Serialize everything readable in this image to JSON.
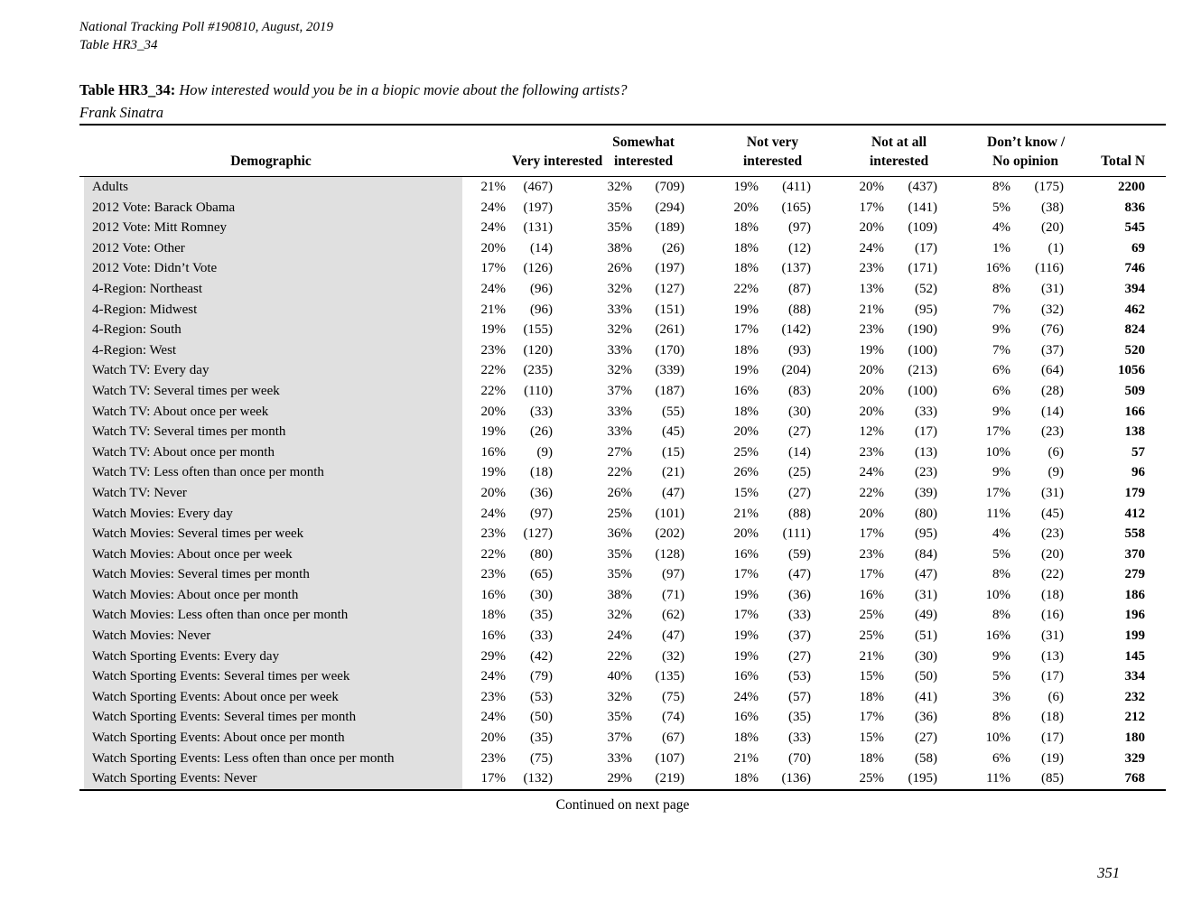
{
  "doc_header": {
    "line1": "National Tracking Poll #190810, August, 2019",
    "line2": "Table HR3_34"
  },
  "title": {
    "label": "Table HR3_34:",
    "question": "How interested would you be in a biopic movie about the following artists?",
    "subject": "Frank Sinatra"
  },
  "footer": {
    "continued": "Continued on next page",
    "page_number": "351"
  },
  "colors": {
    "demographic_shade": "#e0e0e0",
    "rule": "#000000",
    "text": "#000000",
    "background": "#ffffff"
  },
  "table": {
    "demographic_header": "Demographic",
    "total_header": "Total N",
    "group_headers": [
      [
        "",
        "Very interested"
      ],
      [
        "Somewhat",
        "interested"
      ],
      [
        "Not very",
        "interested"
      ],
      [
        "Not at all",
        "interested"
      ],
      [
        "Don’t know /",
        "No opinion"
      ]
    ],
    "rows": [
      {
        "label": "Adults",
        "values": [
          "21%",
          "(467)",
          "32%",
          "(709)",
          "19%",
          "(411)",
          "20%",
          "(437)",
          "8%",
          "(175)"
        ],
        "total": "2200"
      },
      {
        "label": "2012 Vote: Barack Obama",
        "values": [
          "24%",
          "(197)",
          "35%",
          "(294)",
          "20%",
          "(165)",
          "17%",
          "(141)",
          "5%",
          "(38)"
        ],
        "total": "836"
      },
      {
        "label": "2012 Vote: Mitt Romney",
        "values": [
          "24%",
          "(131)",
          "35%",
          "(189)",
          "18%",
          "(97)",
          "20%",
          "(109)",
          "4%",
          "(20)"
        ],
        "total": "545"
      },
      {
        "label": "2012 Vote: Other",
        "values": [
          "20%",
          "(14)",
          "38%",
          "(26)",
          "18%",
          "(12)",
          "24%",
          "(17)",
          "1%",
          "(1)"
        ],
        "total": "69"
      },
      {
        "label": "2012 Vote: Didn’t Vote",
        "values": [
          "17%",
          "(126)",
          "26%",
          "(197)",
          "18%",
          "(137)",
          "23%",
          "(171)",
          "16%",
          "(116)"
        ],
        "total": "746"
      },
      {
        "label": "4-Region: Northeast",
        "values": [
          "24%",
          "(96)",
          "32%",
          "(127)",
          "22%",
          "(87)",
          "13%",
          "(52)",
          "8%",
          "(31)"
        ],
        "total": "394"
      },
      {
        "label": "4-Region: Midwest",
        "values": [
          "21%",
          "(96)",
          "33%",
          "(151)",
          "19%",
          "(88)",
          "21%",
          "(95)",
          "7%",
          "(32)"
        ],
        "total": "462"
      },
      {
        "label": "4-Region: South",
        "values": [
          "19%",
          "(155)",
          "32%",
          "(261)",
          "17%",
          "(142)",
          "23%",
          "(190)",
          "9%",
          "(76)"
        ],
        "total": "824"
      },
      {
        "label": "4-Region: West",
        "values": [
          "23%",
          "(120)",
          "33%",
          "(170)",
          "18%",
          "(93)",
          "19%",
          "(100)",
          "7%",
          "(37)"
        ],
        "total": "520"
      },
      {
        "label": "Watch TV: Every day",
        "values": [
          "22%",
          "(235)",
          "32%",
          "(339)",
          "19%",
          "(204)",
          "20%",
          "(213)",
          "6%",
          "(64)"
        ],
        "total": "1056"
      },
      {
        "label": "Watch TV: Several times per week",
        "values": [
          "22%",
          "(110)",
          "37%",
          "(187)",
          "16%",
          "(83)",
          "20%",
          "(100)",
          "6%",
          "(28)"
        ],
        "total": "509"
      },
      {
        "label": "Watch TV: About once per week",
        "values": [
          "20%",
          "(33)",
          "33%",
          "(55)",
          "18%",
          "(30)",
          "20%",
          "(33)",
          "9%",
          "(14)"
        ],
        "total": "166"
      },
      {
        "label": "Watch TV: Several times per month",
        "values": [
          "19%",
          "(26)",
          "33%",
          "(45)",
          "20%",
          "(27)",
          "12%",
          "(17)",
          "17%",
          "(23)"
        ],
        "total": "138"
      },
      {
        "label": "Watch TV: About once per month",
        "values": [
          "16%",
          "(9)",
          "27%",
          "(15)",
          "25%",
          "(14)",
          "23%",
          "(13)",
          "10%",
          "(6)"
        ],
        "total": "57"
      },
      {
        "label": "Watch TV: Less often than once per month",
        "values": [
          "19%",
          "(18)",
          "22%",
          "(21)",
          "26%",
          "(25)",
          "24%",
          "(23)",
          "9%",
          "(9)"
        ],
        "total": "96"
      },
      {
        "label": "Watch TV: Never",
        "values": [
          "20%",
          "(36)",
          "26%",
          "(47)",
          "15%",
          "(27)",
          "22%",
          "(39)",
          "17%",
          "(31)"
        ],
        "total": "179"
      },
      {
        "label": "Watch Movies: Every day",
        "values": [
          "24%",
          "(97)",
          "25%",
          "(101)",
          "21%",
          "(88)",
          "20%",
          "(80)",
          "11%",
          "(45)"
        ],
        "total": "412"
      },
      {
        "label": "Watch Movies: Several times per week",
        "values": [
          "23%",
          "(127)",
          "36%",
          "(202)",
          "20%",
          "(111)",
          "17%",
          "(95)",
          "4%",
          "(23)"
        ],
        "total": "558"
      },
      {
        "label": "Watch Movies: About once per week",
        "values": [
          "22%",
          "(80)",
          "35%",
          "(128)",
          "16%",
          "(59)",
          "23%",
          "(84)",
          "5%",
          "(20)"
        ],
        "total": "370"
      },
      {
        "label": "Watch Movies: Several times per month",
        "values": [
          "23%",
          "(65)",
          "35%",
          "(97)",
          "17%",
          "(47)",
          "17%",
          "(47)",
          "8%",
          "(22)"
        ],
        "total": "279"
      },
      {
        "label": "Watch Movies: About once per month",
        "values": [
          "16%",
          "(30)",
          "38%",
          "(71)",
          "19%",
          "(36)",
          "16%",
          "(31)",
          "10%",
          "(18)"
        ],
        "total": "186"
      },
      {
        "label": "Watch Movies: Less often than once per month",
        "values": [
          "18%",
          "(35)",
          "32%",
          "(62)",
          "17%",
          "(33)",
          "25%",
          "(49)",
          "8%",
          "(16)"
        ],
        "total": "196"
      },
      {
        "label": "Watch Movies: Never",
        "values": [
          "16%",
          "(33)",
          "24%",
          "(47)",
          "19%",
          "(37)",
          "25%",
          "(51)",
          "16%",
          "(31)"
        ],
        "total": "199"
      },
      {
        "label": "Watch Sporting Events: Every day",
        "values": [
          "29%",
          "(42)",
          "22%",
          "(32)",
          "19%",
          "(27)",
          "21%",
          "(30)",
          "9%",
          "(13)"
        ],
        "total": "145"
      },
      {
        "label": "Watch Sporting Events: Several times per week",
        "values": [
          "24%",
          "(79)",
          "40%",
          "(135)",
          "16%",
          "(53)",
          "15%",
          "(50)",
          "5%",
          "(17)"
        ],
        "total": "334"
      },
      {
        "label": "Watch Sporting Events: About once per week",
        "values": [
          "23%",
          "(53)",
          "32%",
          "(75)",
          "24%",
          "(57)",
          "18%",
          "(41)",
          "3%",
          "(6)"
        ],
        "total": "232"
      },
      {
        "label": "Watch Sporting Events: Several times per month",
        "values": [
          "24%",
          "(50)",
          "35%",
          "(74)",
          "16%",
          "(35)",
          "17%",
          "(36)",
          "8%",
          "(18)"
        ],
        "total": "212"
      },
      {
        "label": "Watch Sporting Events: About once per month",
        "values": [
          "20%",
          "(35)",
          "37%",
          "(67)",
          "18%",
          "(33)",
          "15%",
          "(27)",
          "10%",
          "(17)"
        ],
        "total": "180"
      },
      {
        "label": "Watch Sporting Events: Less often than once per month",
        "values": [
          "23%",
          "(75)",
          "33%",
          "(107)",
          "21%",
          "(70)",
          "18%",
          "(58)",
          "6%",
          "(19)"
        ],
        "total": "329"
      },
      {
        "label": "Watch Sporting Events: Never",
        "values": [
          "17%",
          "(132)",
          "29%",
          "(219)",
          "18%",
          "(136)",
          "25%",
          "(195)",
          "11%",
          "(85)"
        ],
        "total": "768"
      }
    ]
  }
}
